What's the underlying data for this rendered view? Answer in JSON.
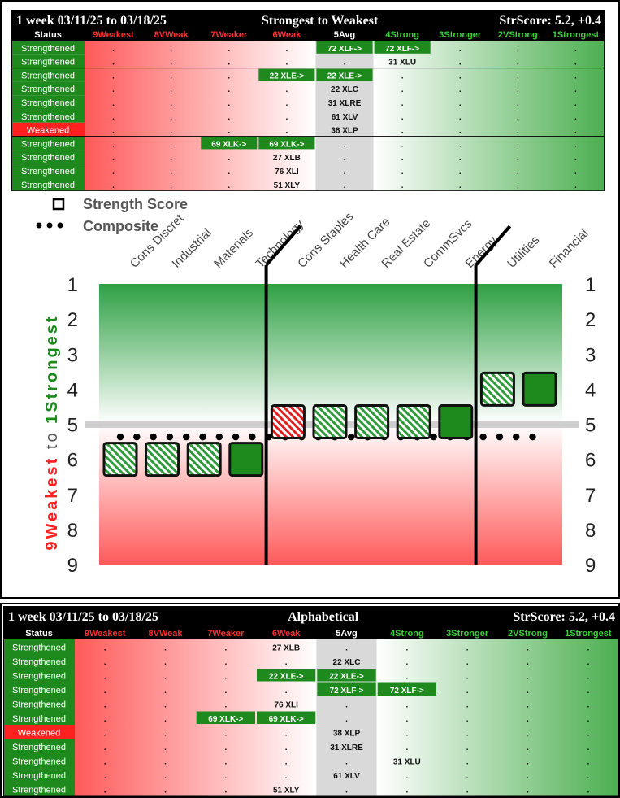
{
  "header_labels": {
    "status": "Status",
    "cols": [
      "9Weakest",
      "8VWeak",
      "7Weaker",
      "6Weak",
      "5Avg",
      "4Strong",
      "3Stronger",
      "2VStrong",
      "1Strongest"
    ]
  },
  "top_table": {
    "title_left": "1 week 03/11/25 to 03/18/25",
    "title_center": "Strongest to Weakest",
    "title_right": "StrScore: 5.2, +0.4",
    "rows": [
      {
        "status": "Strengthened",
        "cells": [
          ".",
          ".",
          ".",
          ".",
          "72 XLF->",
          "72 XLF->",
          ".",
          ".",
          "."
        ]
      },
      {
        "status": "Strengthened",
        "cells": [
          ".",
          ".",
          ".",
          ".",
          ".",
          "31 XLU",
          ".",
          ".",
          "."
        ]
      },
      {
        "status": "Strengthened",
        "cells": [
          ".",
          ".",
          ".",
          "22 XLE->",
          "22 XLE->",
          ".",
          ".",
          ".",
          "."
        ]
      },
      {
        "status": "Strengthened",
        "cells": [
          ".",
          ".",
          ".",
          ".",
          "22 XLC",
          ".",
          ".",
          ".",
          "."
        ]
      },
      {
        "status": "Strengthened",
        "cells": [
          ".",
          ".",
          ".",
          ".",
          "31 XLRE",
          ".",
          ".",
          ".",
          "."
        ]
      },
      {
        "status": "Strengthened",
        "cells": [
          ".",
          ".",
          ".",
          ".",
          "61 XLV",
          ".",
          ".",
          ".",
          "."
        ]
      },
      {
        "status": "Weakened",
        "cells": [
          ".",
          ".",
          ".",
          ".",
          "38 XLP",
          ".",
          ".",
          ".",
          "."
        ]
      },
      {
        "status": "Strengthened",
        "cells": [
          ".",
          ".",
          "69 XLK->",
          "69 XLK->",
          ".",
          ".",
          ".",
          ".",
          "."
        ]
      },
      {
        "status": "Strengthened",
        "cells": [
          ".",
          ".",
          ".",
          "27 XLB",
          ".",
          ".",
          ".",
          ".",
          "."
        ]
      },
      {
        "status": "Strengthened",
        "cells": [
          ".",
          ".",
          ".",
          "76 XLI",
          ".",
          ".",
          ".",
          ".",
          "."
        ]
      },
      {
        "status": "Strengthened",
        "cells": [
          ".",
          ".",
          ".",
          "51 XLY",
          ".",
          ".",
          ".",
          ".",
          "."
        ]
      }
    ],
    "highlights": [
      [
        0,
        4
      ],
      [
        0,
        5
      ],
      [
        2,
        3
      ],
      [
        2,
        4
      ],
      [
        7,
        2
      ],
      [
        7,
        3
      ]
    ]
  },
  "bottom_table": {
    "title_left": "1 week 03/11/25 to 03/18/25",
    "title_center": "Alphabetical",
    "title_right": "StrScore: 5.2, +0.4",
    "rows": [
      {
        "status": "Strengthened",
        "cells": [
          ".",
          ".",
          ".",
          "27 XLB",
          ".",
          ".",
          ".",
          ".",
          "."
        ]
      },
      {
        "status": "Strengthened",
        "cells": [
          ".",
          ".",
          ".",
          ".",
          "22 XLC",
          ".",
          ".",
          ".",
          "."
        ]
      },
      {
        "status": "Strengthened",
        "cells": [
          ".",
          ".",
          ".",
          "22 XLE->",
          "22 XLE->",
          ".",
          ".",
          ".",
          "."
        ]
      },
      {
        "status": "Strengthened",
        "cells": [
          ".",
          ".",
          ".",
          ".",
          "72 XLF->",
          "72 XLF->",
          ".",
          ".",
          "."
        ]
      },
      {
        "status": "Strengthened",
        "cells": [
          ".",
          ".",
          ".",
          "76 XLI",
          ".",
          ".",
          ".",
          ".",
          "."
        ]
      },
      {
        "status": "Strengthened",
        "cells": [
          ".",
          ".",
          "69 XLK->",
          "69 XLK->",
          ".",
          ".",
          ".",
          ".",
          "."
        ]
      },
      {
        "status": "Weakened",
        "cells": [
          ".",
          ".",
          ".",
          ".",
          "38 XLP",
          ".",
          ".",
          ".",
          "."
        ]
      },
      {
        "status": "Strengthened",
        "cells": [
          ".",
          ".",
          ".",
          ".",
          "31 XLRE",
          ".",
          ".",
          ".",
          "."
        ]
      },
      {
        "status": "Strengthened",
        "cells": [
          ".",
          ".",
          ".",
          ".",
          ".",
          "31 XLU",
          ".",
          ".",
          "."
        ]
      },
      {
        "status": "Strengthened",
        "cells": [
          ".",
          ".",
          ".",
          ".",
          "61 XLV",
          ".",
          ".",
          ".",
          "."
        ]
      },
      {
        "status": "Strengthened",
        "cells": [
          ".",
          ".",
          ".",
          "51 XLY",
          ".",
          ".",
          ".",
          ".",
          "."
        ]
      }
    ],
    "highlights": [
      [
        2,
        3
      ],
      [
        2,
        4
      ],
      [
        3,
        4
      ],
      [
        3,
        5
      ],
      [
        5,
        2
      ],
      [
        5,
        3
      ]
    ]
  },
  "colors": {
    "strong_green": "#1e8a1e",
    "weak_red": "#ff2020",
    "header_red": "#ff3030",
    "header_green": "#3ad13a",
    "avg_gray": "#d9d9d9"
  },
  "chart_data": {
    "type": "scatter",
    "legend": [
      {
        "label": "Strength Score",
        "marker": "square"
      },
      {
        "label": "Composite",
        "marker": "dots"
      }
    ],
    "y_axis_label_weak": "9Weakest",
    "y_axis_label_to": "to",
    "y_axis_label_strong": "1Strongest",
    "ylim": [
      1,
      9
    ],
    "y_ticks": [
      1,
      2,
      3,
      4,
      5,
      6,
      7,
      8,
      9
    ],
    "categories": [
      "Cons Discret",
      "Industrial",
      "Materials",
      "Technology",
      "Cons Staples",
      "Health Care",
      "Real Estate",
      "CommSvcs",
      "Energy",
      "Utilities",
      "Financial"
    ],
    "strength_score": [
      6,
      6,
      6,
      6,
      5,
      5,
      5,
      5,
      5,
      4,
      4
    ],
    "marker_style": [
      "hatch-green",
      "hatch-green",
      "hatch-green",
      "solid-green",
      "hatch-red",
      "hatch-green",
      "hatch-green",
      "hatch-green",
      "solid-green",
      "hatch-green",
      "solid-green"
    ],
    "composite": 5.2,
    "average_line": 5,
    "group_dividers_after": [
      "Technology",
      "Energy"
    ]
  }
}
